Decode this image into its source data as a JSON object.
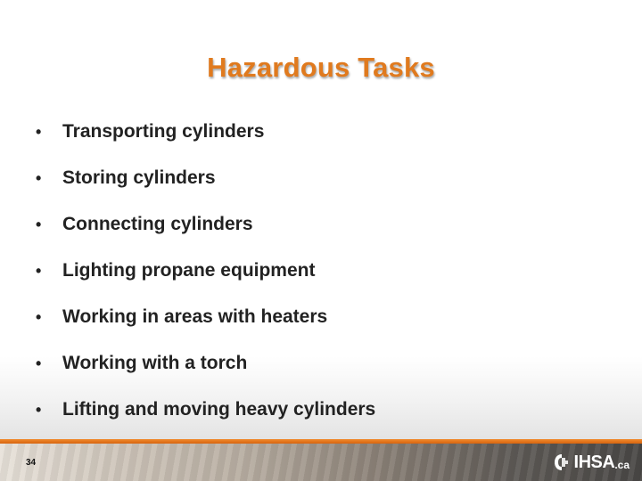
{
  "slide": {
    "title": "Hazardous Tasks",
    "bullets": [
      "Transporting cylinders",
      "Storing cylinders",
      "Connecting cylinders",
      "Lighting propane equipment",
      "Working in areas with heaters",
      "Working with a torch",
      "Lifting and moving heavy cylinders"
    ],
    "bullet_glyph": "•"
  },
  "footer": {
    "page_number": "34",
    "logo_text": "IHSA",
    "logo_suffix": ".ca",
    "logo_icon": "ihsa-logo-icon"
  },
  "colors": {
    "title": "#E07A1E",
    "accent_bar": "#E87722",
    "text": "#222222"
  }
}
